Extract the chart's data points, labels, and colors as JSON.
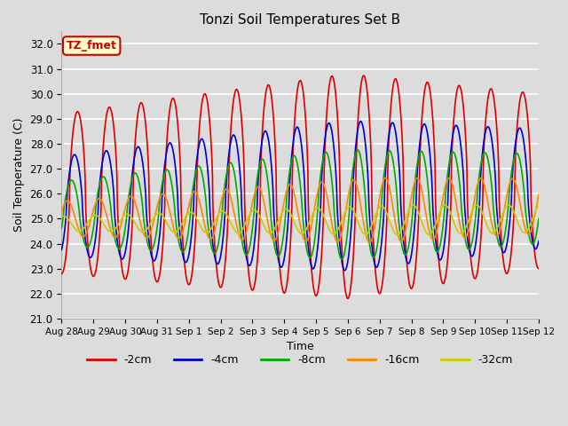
{
  "title": "Tonzi Soil Temperatures Set B",
  "xlabel": "Time",
  "ylabel": "Soil Temperature (C)",
  "ylim": [
    21.0,
    32.5
  ],
  "yticks": [
    21.0,
    22.0,
    23.0,
    24.0,
    25.0,
    26.0,
    27.0,
    28.0,
    29.0,
    30.0,
    31.0,
    32.0
  ],
  "fig_bg_color": "#dcdcdc",
  "plot_bg_color": "#dcdcdc",
  "grid_color": "#ffffff",
  "annotation_text": "TZ_fmet",
  "annotation_bg": "#ffffcc",
  "annotation_border": "#cc0000",
  "series": {
    "-2cm": {
      "color": "#dd0000",
      "lw": 1.2
    },
    "-4cm": {
      "color": "#0000cc",
      "lw": 1.2
    },
    "-8cm": {
      "color": "#00aa00",
      "lw": 1.2
    },
    "-16cm": {
      "color": "#ff8800",
      "lw": 1.2
    },
    "-32cm": {
      "color": "#cccc00",
      "lw": 1.2
    }
  },
  "x_tick_labels": [
    "Aug 28",
    "Aug 29",
    "Aug 30",
    "Aug 31",
    "Sep 1",
    "Sep 2",
    "Sep 3",
    "Sep 4",
    "Sep 5",
    "Sep 6",
    "Sep 7",
    "Sep 8",
    "Sep 9",
    "Sep 10",
    "Sep 11",
    "Sep 12"
  ],
  "n_points": 1440,
  "days": 15
}
